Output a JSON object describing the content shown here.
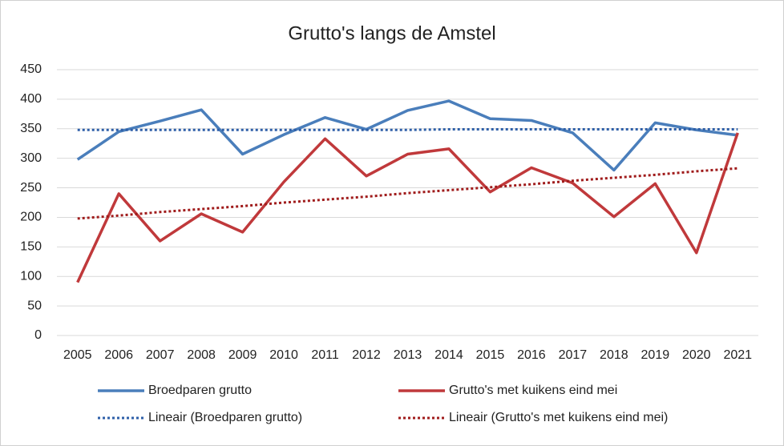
{
  "chart_data": {
    "type": "line",
    "title": "Grutto's langs de Amstel",
    "categories": [
      "2005",
      "2006",
      "2007",
      "2008",
      "2009",
      "2010",
      "2011",
      "2012",
      "2013",
      "2014",
      "2015",
      "2016",
      "2017",
      "2018",
      "2019",
      "2020",
      "2021"
    ],
    "series": [
      {
        "name": "Broedparen grutto",
        "color": "#4a7ebb",
        "style": "solid",
        "values": [
          298,
          345,
          363,
          382,
          307,
          340,
          369,
          349,
          381,
          397,
          367,
          364,
          343,
          280,
          360,
          348,
          339
        ]
      },
      {
        "name": "Grutto's met kuikens eind mei",
        "color": "#c0393b",
        "style": "solid",
        "values": [
          90,
          240,
          160,
          206,
          175,
          260,
          333,
          270,
          307,
          316,
          243,
          284,
          258,
          201,
          257,
          140,
          343
        ]
      },
      {
        "name": "Lineair (Broedparen grutto)",
        "color": "#2e5fa8",
        "style": "dotted",
        "values": [
          348,
          348,
          348,
          348,
          348,
          348,
          348,
          348,
          348,
          349,
          349,
          349,
          349,
          349,
          349,
          349,
          349
        ]
      },
      {
        "name": "Lineair (Grutto's met kuikens eind mei)",
        "color": "#a01c1c",
        "style": "dotted",
        "values": [
          198,
          203,
          209,
          214,
          219,
          225,
          230,
          235,
          241,
          246,
          251,
          256,
          262,
          267,
          272,
          278,
          283
        ]
      }
    ],
    "ylim": [
      0,
      450
    ],
    "yticks": [
      0,
      50,
      100,
      150,
      200,
      250,
      300,
      350,
      400,
      450
    ],
    "grid": true,
    "legend": "bottom"
  }
}
